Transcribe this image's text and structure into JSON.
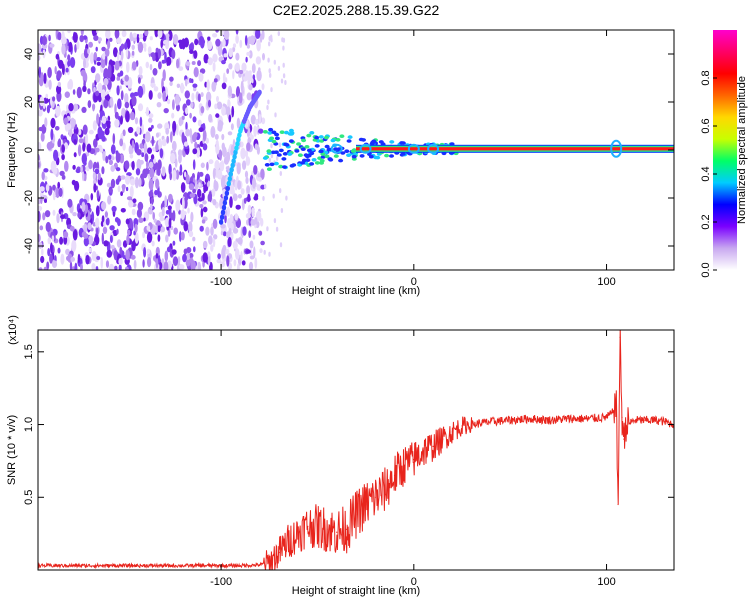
{
  "title": "C2E2.2025.288.15.39.G22",
  "chart_data": [
    {
      "type": "heatmap",
      "xlabel": "Height of straight line (km)",
      "ylabel": "Frequency (Hz)",
      "xlim": [
        -195,
        135
      ],
      "ylim": [
        -50,
        50
      ],
      "x_ticks": [
        -100,
        0,
        100
      ],
      "x_tick_labels": [
        "-100",
        "0",
        "100"
      ],
      "y_ticks": [
        -40,
        -20,
        0,
        20,
        40
      ],
      "y_tick_labels": [
        "-40",
        "-20",
        "0",
        "20",
        "40"
      ],
      "colorbar": {
        "label": "Normalized spectral amplitude",
        "range": [
          0,
          1
        ],
        "ticks": [
          0.0,
          0.2,
          0.4,
          0.6,
          0.8
        ],
        "tick_labels": [
          "0.0",
          "0.2",
          "0.4",
          "0.6",
          "0.8"
        ],
        "colors": [
          "#ffffff",
          "#c8a8f0",
          "#7a00ff",
          "#0000ff",
          "#00ccff",
          "#00ff66",
          "#c8ff00",
          "#ffd800",
          "#ff6600",
          "#ff0000",
          "#ff0066",
          "#ff00cc"
        ]
      },
      "features": {
        "noise_region_x": [
          -195,
          -78
        ],
        "chirp": [
          [
            -100,
            -30
          ],
          [
            -95,
            -10
          ],
          [
            -90,
            8
          ],
          [
            -85,
            18
          ],
          [
            -80,
            24
          ]
        ],
        "carrier_start_x": -78,
        "carrier_frequency": 0.5
      }
    },
    {
      "type": "line",
      "xlabel": "Height of straight line (km)",
      "ylabel": "SNR (10 * v/v)",
      "y_multiplier_label": "(x10⁴)",
      "xlim": [
        -195,
        135
      ],
      "ylim": [
        0,
        1.65
      ],
      "x_ticks": [
        -100,
        0,
        100
      ],
      "x_tick_labels": [
        "-100",
        "0",
        "100"
      ],
      "y_ticks": [
        0.5,
        1.0,
        1.5
      ],
      "y_tick_labels": [
        "0.5",
        "1.0",
        "1.5"
      ],
      "series": [
        {
          "color": "#e8241c",
          "x": [
            -195,
            -180,
            -160,
            -140,
            -120,
            -100,
            -90,
            -80,
            -75,
            -70,
            -65,
            -60,
            -55,
            -50,
            -45,
            -40,
            -35,
            -30,
            -25,
            -20,
            -15,
            -10,
            -5,
            0,
            5,
            10,
            15,
            20,
            25,
            30,
            40,
            50,
            60,
            70,
            80,
            90,
            100,
            103,
            105,
            106,
            107,
            108,
            109,
            110,
            115,
            120,
            125,
            130,
            135
          ],
          "y": [
            0.03,
            0.03,
            0.03,
            0.03,
            0.03,
            0.03,
            0.03,
            0.035,
            0.05,
            0.12,
            0.2,
            0.25,
            0.3,
            0.3,
            0.28,
            0.26,
            0.28,
            0.38,
            0.45,
            0.5,
            0.55,
            0.65,
            0.72,
            0.76,
            0.82,
            0.85,
            0.9,
            0.95,
            0.99,
            1.0,
            1.02,
            1.03,
            1.04,
            1.03,
            1.04,
            1.04,
            1.05,
            1.08,
            1.15,
            0.45,
            1.6,
            1.05,
            0.9,
            1.0,
            1.03,
            1.03,
            1.03,
            1.02,
            1.0
          ]
        }
      ]
    }
  ]
}
